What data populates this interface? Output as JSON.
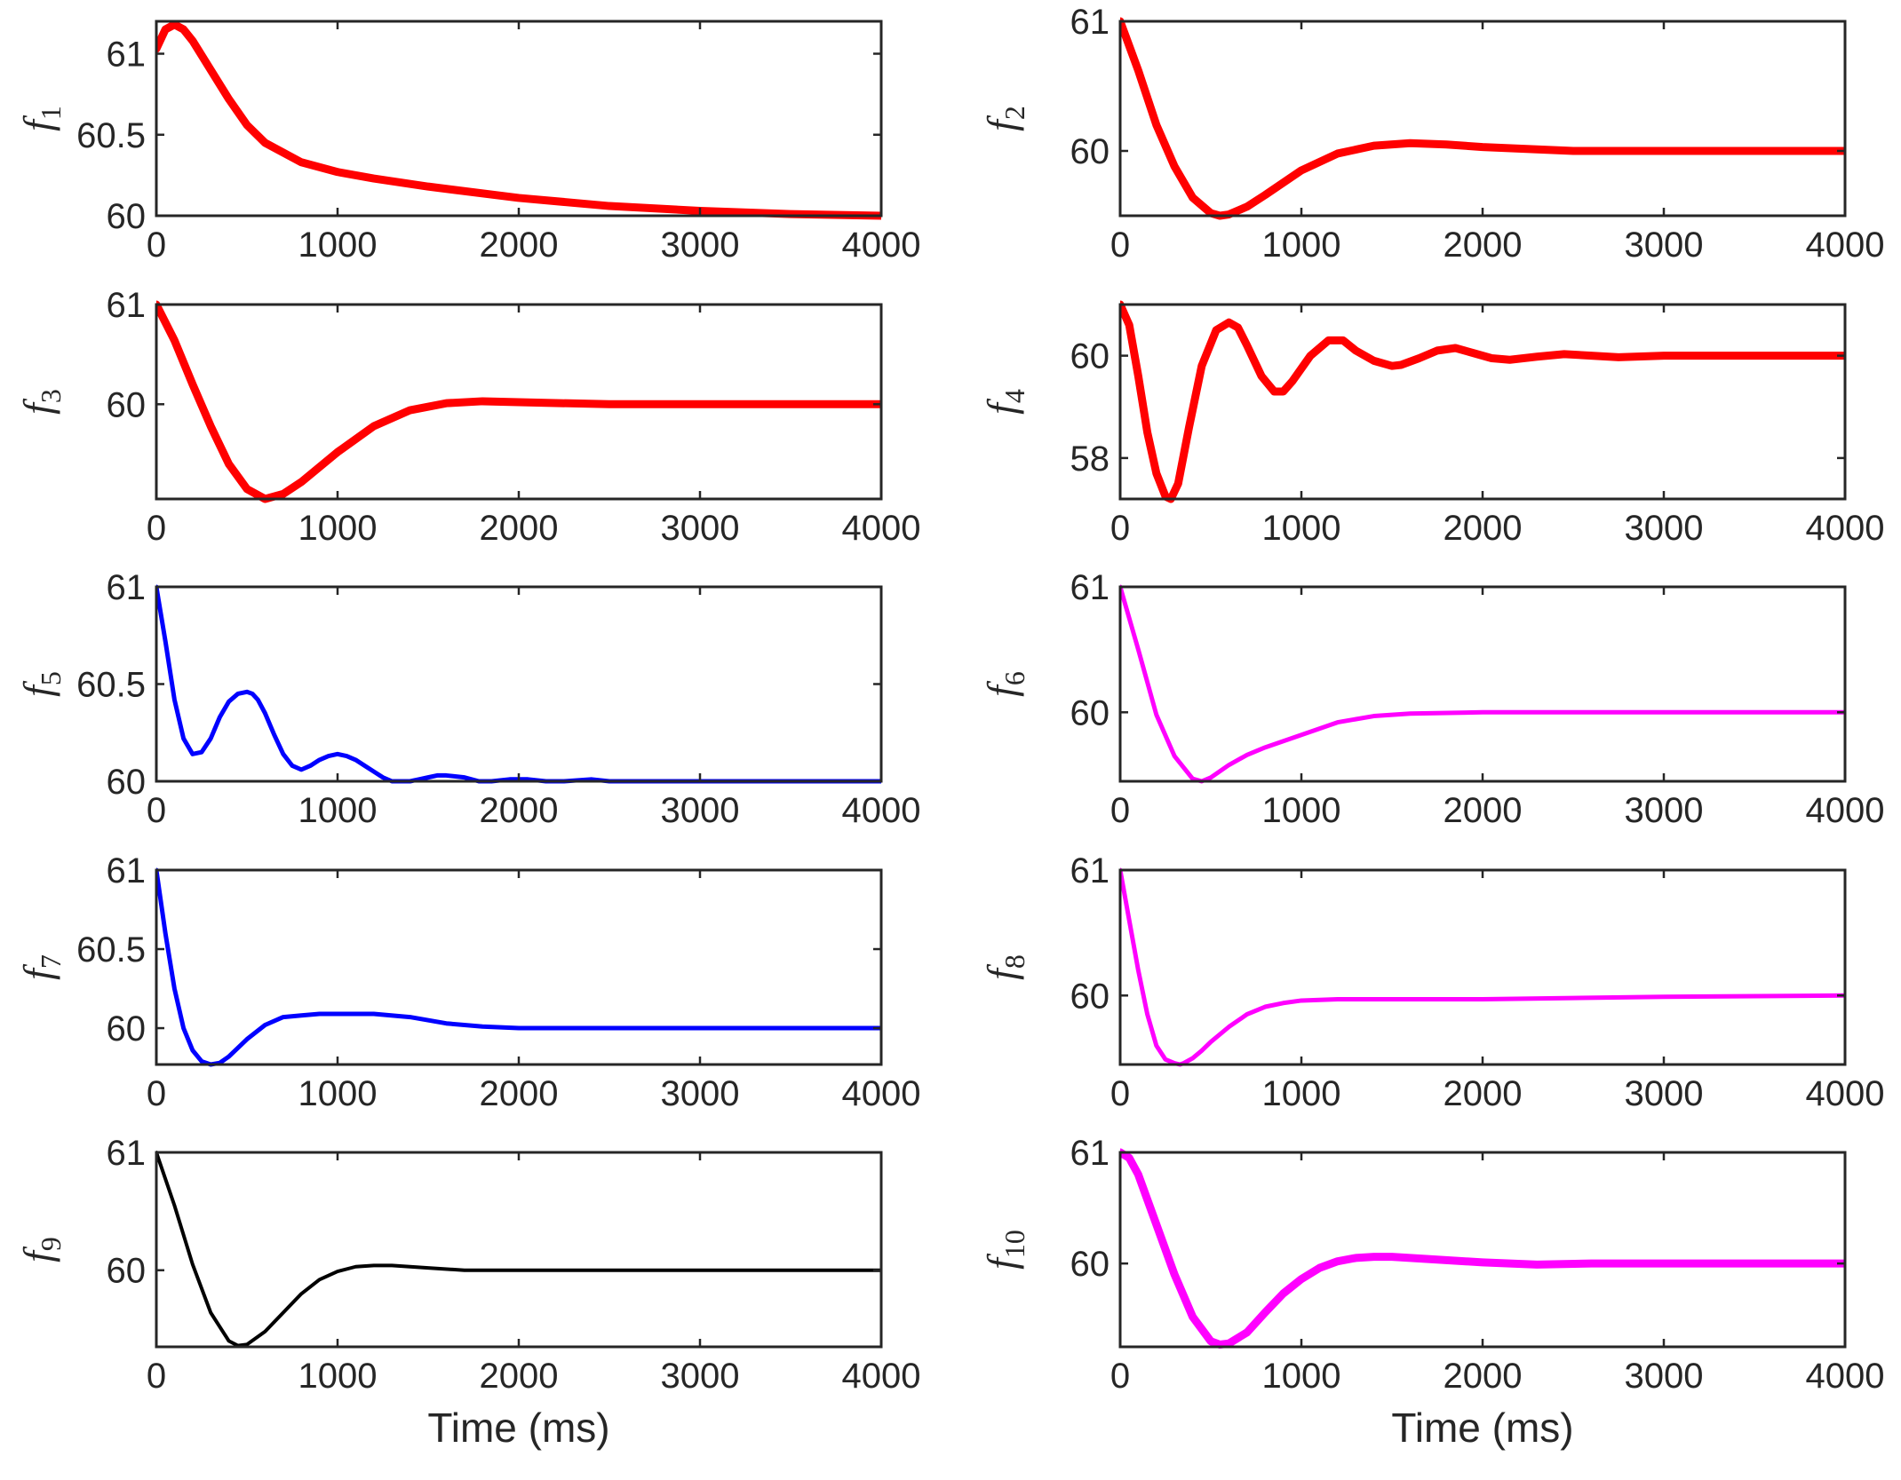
{
  "chart_data": [
    {
      "type": "line",
      "id": "f1",
      "ylabel_main": "f",
      "ylabel_sub": "1",
      "xlabel": "",
      "xlim": [
        0,
        4000
      ],
      "ylim": [
        60,
        61.2
      ],
      "xticks": [
        0,
        1000,
        2000,
        3000,
        4000
      ],
      "xtick_labels": [
        "0",
        "1000",
        "2000",
        "3000",
        "4000"
      ],
      "yticks": [
        60,
        60.5,
        61
      ],
      "ytick_labels": [
        "60",
        "60.5",
        "61"
      ],
      "series": [
        {
          "name": "f1",
          "color": "#ff0000",
          "linewidth": 9,
          "x": [
            0,
            50,
            100,
            150,
            200,
            300,
            400,
            500,
            600,
            800,
            1000,
            1200,
            1500,
            2000,
            2500,
            3000,
            3500,
            4000
          ],
          "y": [
            61.03,
            61.15,
            61.18,
            61.15,
            61.08,
            60.9,
            60.72,
            60.56,
            60.45,
            60.33,
            60.27,
            60.23,
            60.18,
            60.11,
            60.06,
            60.03,
            60.01,
            60.0
          ]
        }
      ]
    },
    {
      "type": "line",
      "id": "f2",
      "ylabel_main": "f",
      "ylabel_sub": "2",
      "xlabel": "",
      "xlim": [
        0,
        4000
      ],
      "ylim": [
        59.5,
        61
      ],
      "xticks": [
        0,
        1000,
        2000,
        3000,
        4000
      ],
      "xtick_labels": [
        "0",
        "1000",
        "2000",
        "3000",
        "4000"
      ],
      "yticks": [
        60,
        61
      ],
      "ytick_labels": [
        "60",
        "61"
      ],
      "series": [
        {
          "name": "f2",
          "color": "#ff0000",
          "linewidth": 9,
          "x": [
            0,
            100,
            200,
            300,
            400,
            500,
            550,
            600,
            700,
            800,
            1000,
            1200,
            1400,
            1600,
            1800,
            2000,
            2500,
            3000,
            4000
          ],
          "y": [
            61.0,
            60.62,
            60.2,
            59.88,
            59.64,
            59.52,
            59.5,
            59.51,
            59.57,
            59.66,
            59.85,
            59.98,
            60.04,
            60.06,
            60.05,
            60.03,
            60.0,
            60.0,
            60.0
          ]
        }
      ]
    },
    {
      "type": "line",
      "id": "f3",
      "ylabel_main": "f",
      "ylabel_sub": "3",
      "xlabel": "",
      "xlim": [
        0,
        4000
      ],
      "ylim": [
        59.05,
        61
      ],
      "xticks": [
        0,
        1000,
        2000,
        3000,
        4000
      ],
      "xtick_labels": [
        "0",
        "1000",
        "2000",
        "3000",
        "4000"
      ],
      "yticks": [
        60,
        61
      ],
      "ytick_labels": [
        "60",
        "61"
      ],
      "series": [
        {
          "name": "f3",
          "color": "#ff0000",
          "linewidth": 9,
          "x": [
            0,
            100,
            200,
            300,
            400,
            500,
            600,
            700,
            800,
            1000,
            1200,
            1400,
            1600,
            1800,
            2000,
            2500,
            3000,
            4000
          ],
          "y": [
            61.0,
            60.64,
            60.2,
            59.78,
            59.4,
            59.15,
            59.05,
            59.1,
            59.22,
            59.52,
            59.78,
            59.94,
            60.01,
            60.03,
            60.02,
            60.0,
            60.0,
            60.0
          ]
        }
      ]
    },
    {
      "type": "line",
      "id": "f4",
      "ylabel_main": "f",
      "ylabel_sub": "4",
      "xlabel": "",
      "xlim": [
        0,
        4000
      ],
      "ylim": [
        57.2,
        61
      ],
      "xticks": [
        0,
        1000,
        2000,
        3000,
        4000
      ],
      "xtick_labels": [
        "0",
        "1000",
        "2000",
        "3000",
        "4000"
      ],
      "yticks": [
        58,
        60
      ],
      "ytick_labels": [
        "58",
        "60"
      ],
      "series": [
        {
          "name": "f4",
          "color": "#ff0000",
          "linewidth": 9,
          "x": [
            0,
            50,
            100,
            150,
            200,
            250,
            280,
            320,
            380,
            450,
            530,
            600,
            650,
            700,
            780,
            850,
            900,
            950,
            1050,
            1150,
            1230,
            1300,
            1400,
            1500,
            1550,
            1650,
            1750,
            1850,
            1950,
            2050,
            2150,
            2300,
            2450,
            2600,
            2750,
            3000,
            3500,
            4000
          ],
          "y": [
            61.0,
            60.6,
            59.6,
            58.5,
            57.7,
            57.25,
            57.2,
            57.5,
            58.6,
            59.8,
            60.5,
            60.65,
            60.55,
            60.2,
            59.6,
            59.3,
            59.3,
            59.5,
            60.0,
            60.3,
            60.3,
            60.1,
            59.9,
            59.8,
            59.82,
            59.95,
            60.1,
            60.15,
            60.05,
            59.95,
            59.92,
            59.98,
            60.03,
            60.0,
            59.97,
            60.0,
            60.0,
            60.0
          ]
        }
      ]
    },
    {
      "type": "line",
      "id": "f5",
      "ylabel_main": "f",
      "ylabel_sub": "5",
      "xlabel": "",
      "xlim": [
        0,
        4000
      ],
      "ylim": [
        60,
        61
      ],
      "xticks": [
        0,
        1000,
        2000,
        3000,
        4000
      ],
      "xtick_labels": [
        "0",
        "1000",
        "2000",
        "3000",
        "4000"
      ],
      "yticks": [
        60,
        60.5,
        61
      ],
      "ytick_labels": [
        "60",
        "60.5",
        "61"
      ],
      "series": [
        {
          "name": "f5",
          "color": "#0000ff",
          "linewidth": 5,
          "x": [
            0,
            50,
            100,
            150,
            200,
            250,
            300,
            350,
            400,
            450,
            500,
            530,
            560,
            600,
            650,
            700,
            750,
            800,
            850,
            900,
            950,
            1000,
            1050,
            1100,
            1150,
            1200,
            1250,
            1300,
            1400,
            1450,
            1500,
            1550,
            1600,
            1700,
            1780,
            1850,
            1950,
            2050,
            2150,
            2250,
            2400,
            2500,
            2700,
            2900,
            3100,
            3500,
            4000
          ],
          "y": [
            61.0,
            60.72,
            60.42,
            60.22,
            60.14,
            60.15,
            60.22,
            60.33,
            60.41,
            60.45,
            60.46,
            60.45,
            60.42,
            60.35,
            60.24,
            60.14,
            60.08,
            60.06,
            60.08,
            60.11,
            60.13,
            60.14,
            60.13,
            60.11,
            60.08,
            60.05,
            60.02,
            60.0,
            60.0,
            60.01,
            60.02,
            60.03,
            60.03,
            60.02,
            60.0,
            60.0,
            60.01,
            60.01,
            60.0,
            60.0,
            60.01,
            60.0,
            60.0,
            60.0,
            60.0,
            60.0,
            60.0
          ]
        }
      ]
    },
    {
      "type": "line",
      "id": "f6",
      "ylabel_main": "f",
      "ylabel_sub": "6",
      "xlabel": "",
      "xlim": [
        0,
        4000
      ],
      "ylim": [
        59.45,
        61
      ],
      "xticks": [
        0,
        1000,
        2000,
        3000,
        4000
      ],
      "xtick_labels": [
        "0",
        "1000",
        "2000",
        "3000",
        "4000"
      ],
      "yticks": [
        60,
        61
      ],
      "ytick_labels": [
        "60",
        "61"
      ],
      "series": [
        {
          "name": "f6",
          "color": "#ff00ff",
          "linewidth": 5,
          "x": [
            0,
            100,
            200,
            300,
            400,
            450,
            500,
            600,
            700,
            800,
            1000,
            1200,
            1400,
            1600,
            2000,
            2500,
            3000,
            4000
          ],
          "y": [
            61.0,
            60.5,
            59.98,
            59.65,
            59.47,
            59.45,
            59.48,
            59.58,
            59.66,
            59.72,
            59.82,
            59.92,
            59.97,
            59.99,
            60.0,
            60.0,
            60.0,
            60.0
          ]
        }
      ]
    },
    {
      "type": "line",
      "id": "f7",
      "ylabel_main": "f",
      "ylabel_sub": "7",
      "xlabel": "",
      "xlim": [
        0,
        4000
      ],
      "ylim": [
        59.77,
        61
      ],
      "xticks": [
        0,
        1000,
        2000,
        3000,
        4000
      ],
      "xtick_labels": [
        "0",
        "1000",
        "2000",
        "3000",
        "4000"
      ],
      "yticks": [
        60,
        60.5,
        61
      ],
      "ytick_labels": [
        "60",
        "60.5",
        "61"
      ],
      "series": [
        {
          "name": "f7",
          "color": "#0000ff",
          "linewidth": 5,
          "x": [
            0,
            50,
            100,
            150,
            200,
            250,
            300,
            350,
            400,
            500,
            600,
            700,
            800,
            900,
            1000,
            1200,
            1400,
            1600,
            1800,
            2000,
            2500,
            3000,
            4000
          ],
          "y": [
            61.0,
            60.6,
            60.25,
            60.0,
            59.86,
            59.79,
            59.77,
            59.78,
            59.82,
            59.93,
            60.02,
            60.07,
            60.08,
            60.09,
            60.09,
            60.09,
            60.07,
            60.03,
            60.01,
            60.0,
            60.0,
            60.0,
            60.0
          ]
        }
      ]
    },
    {
      "type": "line",
      "id": "f8",
      "ylabel_main": "f",
      "ylabel_sub": "8",
      "xlabel": "",
      "xlim": [
        0,
        4000
      ],
      "ylim": [
        59.45,
        61
      ],
      "xticks": [
        0,
        1000,
        2000,
        3000,
        4000
      ],
      "xtick_labels": [
        "0",
        "1000",
        "2000",
        "3000",
        "4000"
      ],
      "yticks": [
        60,
        61
      ],
      "ytick_labels": [
        "60",
        "61"
      ],
      "series": [
        {
          "name": "f8",
          "color": "#ff00ff",
          "linewidth": 5,
          "x": [
            0,
            50,
            100,
            150,
            200,
            250,
            300,
            330,
            350,
            400,
            450,
            500,
            600,
            700,
            800,
            900,
            1000,
            1200,
            1500,
            2000,
            2500,
            3000,
            4000
          ],
          "y": [
            61.0,
            60.6,
            60.2,
            59.85,
            59.6,
            59.49,
            59.46,
            59.45,
            59.46,
            59.5,
            59.56,
            59.63,
            59.75,
            59.85,
            59.91,
            59.94,
            59.96,
            59.97,
            59.97,
            59.97,
            59.98,
            59.99,
            60.0
          ]
        }
      ]
    },
    {
      "type": "line",
      "id": "f9",
      "ylabel_main": "f",
      "ylabel_sub": "9",
      "xlabel": "Time (ms)",
      "xlim": [
        0,
        4000
      ],
      "ylim": [
        59.35,
        61
      ],
      "xticks": [
        0,
        1000,
        2000,
        3000,
        4000
      ],
      "xtick_labels": [
        "0",
        "1000",
        "2000",
        "3000",
        "4000"
      ],
      "yticks": [
        60,
        61
      ],
      "ytick_labels": [
        "60",
        "61"
      ],
      "series": [
        {
          "name": "f9",
          "color": "#000000",
          "linewidth": 4,
          "x": [
            0,
            100,
            200,
            300,
            400,
            450,
            500,
            600,
            700,
            800,
            900,
            1000,
            1100,
            1200,
            1300,
            1400,
            1500,
            1700,
            2000,
            2500,
            3000,
            4000
          ],
          "y": [
            61.0,
            60.55,
            60.05,
            59.64,
            59.4,
            59.36,
            59.37,
            59.48,
            59.64,
            59.8,
            59.92,
            59.99,
            60.03,
            60.04,
            60.04,
            60.03,
            60.02,
            60.0,
            60.0,
            60.0,
            60.0,
            60.0
          ]
        }
      ]
    },
    {
      "type": "line",
      "id": "f10",
      "ylabel_main": "f",
      "ylabel_sub": "10",
      "xlabel": "Time (ms)",
      "xlim": [
        0,
        4000
      ],
      "ylim": [
        59.25,
        61
      ],
      "xticks": [
        0,
        1000,
        2000,
        3000,
        4000
      ],
      "xtick_labels": [
        "0",
        "1000",
        "2000",
        "3000",
        "4000"
      ],
      "yticks": [
        60,
        61
      ],
      "ytick_labels": [
        "60",
        "61"
      ],
      "series": [
        {
          "name": "f10",
          "color": "#ff00ff",
          "linewidth": 9,
          "x": [
            0,
            50,
            100,
            200,
            300,
            400,
            500,
            550,
            600,
            700,
            800,
            900,
            1000,
            1100,
            1200,
            1300,
            1400,
            1500,
            1700,
            2000,
            2300,
            2600,
            3000,
            4000
          ],
          "y": [
            61.0,
            60.95,
            60.8,
            60.35,
            59.9,
            59.52,
            59.3,
            59.27,
            59.28,
            59.38,
            59.56,
            59.73,
            59.86,
            59.96,
            60.02,
            60.05,
            60.06,
            60.06,
            60.04,
            60.01,
            59.99,
            60.0,
            60.0,
            60.0
          ]
        }
      ]
    }
  ]
}
